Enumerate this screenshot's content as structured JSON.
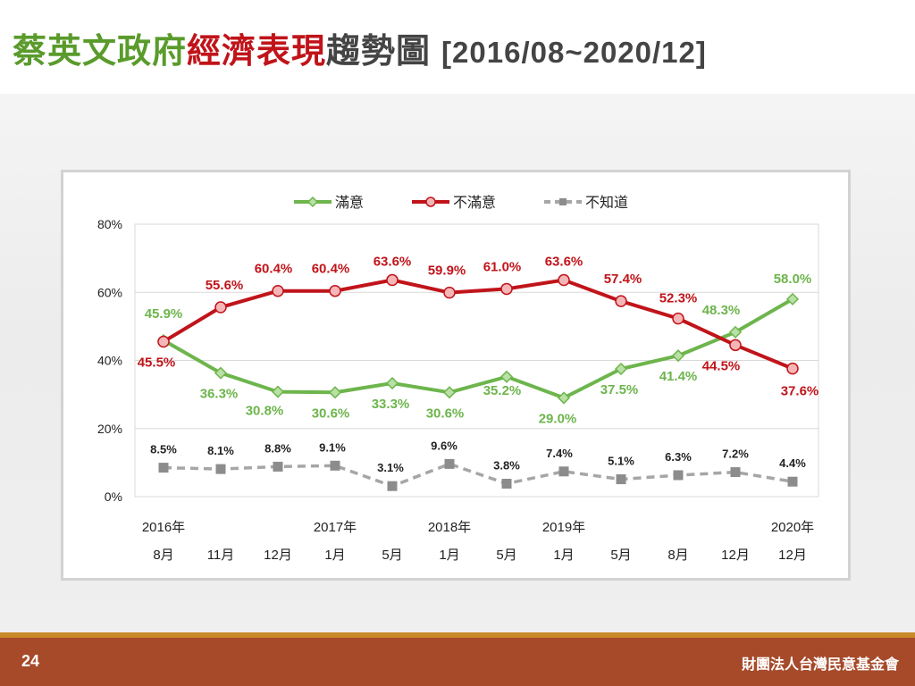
{
  "header": {
    "title_part1": "蔡英文政府",
    "title_part2": "經濟表現",
    "title_part3": "趨勢圖",
    "title_range": "[2016/08~2020/12]"
  },
  "footer": {
    "page_number": "24",
    "organization": "財團法人台灣民意基金會"
  },
  "colors": {
    "satisfied": "#6db54c",
    "dissatisfied": "#c0141a",
    "unknown": "#a6a6a6"
  },
  "chart_data": {
    "type": "line",
    "categories": [
      "8月",
      "11月",
      "12月",
      "1月",
      "5月",
      "1月",
      "5月",
      "1月",
      "5月",
      "8月",
      "12月",
      "12月"
    ],
    "year_labels": [
      "2016年",
      "",
      "",
      "2017年",
      "",
      "2018年",
      "",
      "2019年",
      "",
      "",
      "",
      "2020年"
    ],
    "yticks": [
      "0%",
      "20%",
      "40%",
      "60%",
      "80%"
    ],
    "ylim": [
      0,
      80
    ],
    "grid": true,
    "legend_position": "top",
    "series": [
      {
        "name": "滿意",
        "color": "#6db54c",
        "values": [
          45.9,
          36.3,
          30.8,
          30.6,
          33.3,
          30.6,
          35.2,
          29.0,
          37.5,
          41.4,
          48.3,
          58.0
        ],
        "labels": [
          "45.9%",
          "36.3%",
          "30.8%",
          "30.6%",
          "33.3%",
          "30.6%",
          "35.2%",
          "29.0%",
          "37.5%",
          "41.4%",
          "48.3%",
          "58.0%"
        ]
      },
      {
        "name": "不滿意",
        "color": "#c0141a",
        "values": [
          45.5,
          55.6,
          60.4,
          60.4,
          63.6,
          59.9,
          61.0,
          63.6,
          57.4,
          52.3,
          44.5,
          37.6
        ],
        "labels": [
          "45.5%",
          "55.6%",
          "60.4%",
          "60.4%",
          "63.6%",
          "59.9%",
          "61.0%",
          "63.6%",
          "57.4%",
          "52.3%",
          "44.5%",
          "37.6%"
        ]
      },
      {
        "name": "不知道",
        "color": "#a6a6a6",
        "values": [
          8.5,
          8.1,
          8.8,
          9.1,
          3.1,
          9.6,
          3.8,
          7.4,
          5.1,
          6.3,
          7.2,
          4.4
        ],
        "labels": [
          "8.5%",
          "8.1%",
          "8.8%",
          "9.1%",
          "3.1%",
          "9.6%",
          "3.8%",
          "7.4%",
          "5.1%",
          "6.3%",
          "7.2%",
          "4.4%"
        ]
      }
    ]
  }
}
